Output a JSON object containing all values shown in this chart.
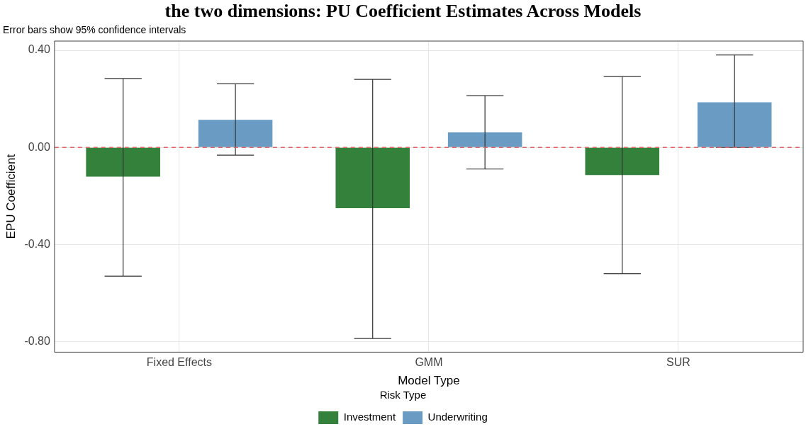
{
  "chart_data": {
    "type": "bar",
    "title": "the two dimensions: PU Coefficient Estimates Across Models",
    "subtitle": "Error bars show 95% confidence intervals",
    "xlabel": "Model Type",
    "ylabel": "EPU Coefficient",
    "legend_title": "Risk Type",
    "categories": [
      "Fixed Effects",
      "GMM",
      "SUR"
    ],
    "series": [
      {
        "name": "Investment",
        "color": "#33813a",
        "values": [
          -0.12,
          -0.25,
          -0.114
        ],
        "errors": [
          [
            -0.53,
            0.284
          ],
          [
            -0.787,
            0.28
          ],
          [
            -0.52,
            0.292
          ]
        ]
      },
      {
        "name": "Underwriting",
        "color": "#6a9bc3",
        "values": [
          0.114,
          0.062,
          0.186
        ],
        "errors": [
          [
            -0.032,
            0.262
          ],
          [
            -0.089,
            0.213
          ],
          [
            0.0,
            0.381
          ]
        ]
      }
    ],
    "ylim": [
      -0.843,
      0.438
    ],
    "yticks": [
      {
        "value": 0.4,
        "label": "0.40"
      },
      {
        "value": 0,
        "label": "0.00"
      },
      {
        "value": -0.4,
        "label": "-0.40"
      },
      {
        "value": -0.8,
        "label": "-0.80"
      }
    ],
    "ref_lines": [
      {
        "axis": "y",
        "value": 0,
        "color": "#e06666",
        "line_style": "dashed"
      }
    ],
    "grid": true,
    "legend": "bottom"
  }
}
